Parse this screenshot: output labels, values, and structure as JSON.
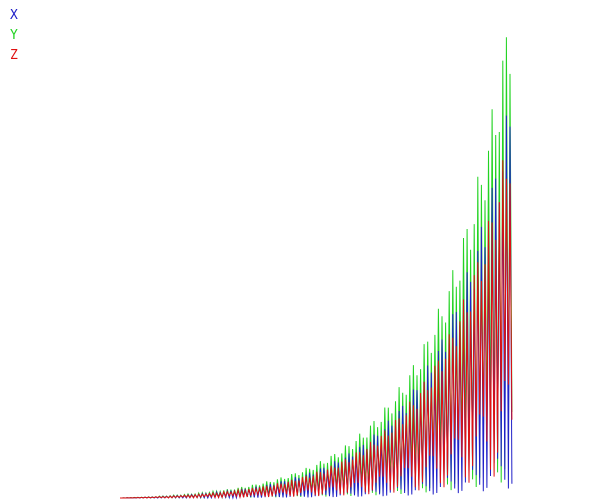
{
  "chart_data": {
    "type": "line",
    "title": "",
    "xlabel": "",
    "ylabel": "",
    "ylim": [
      0,
      1
    ],
    "grid": false,
    "legend_position": "top-left",
    "series": [
      {
        "name": "X",
        "color": "#2020c8"
      },
      {
        "name": "Y",
        "color": "#22d322"
      },
      {
        "name": "Z",
        "color": "#e01010"
      }
    ],
    "x_extent": [
      0.2,
      0.85
    ],
    "sample_count": 110,
    "peak_levels": {
      "X": 0.81,
      "Y": 1.0,
      "Z": 0.75
    },
    "envelope_growth": "exponential"
  }
}
